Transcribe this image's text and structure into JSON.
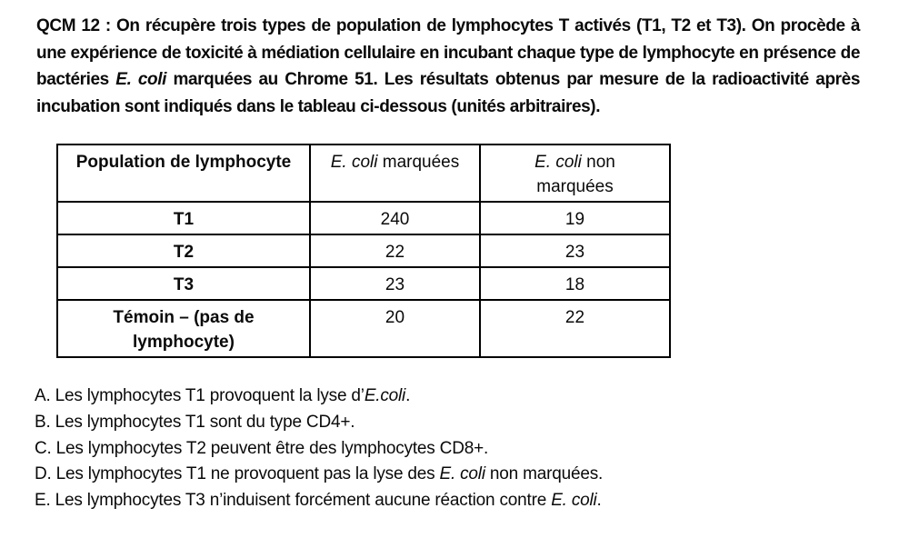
{
  "question": {
    "part1": "QCM 12 : On récupère trois types de population de lymphocytes T activés (T1, T2 et T3). On procède à une expérience de toxicité à médiation cellulaire en incubant chaque type de lymphocyte en présence de bactéries ",
    "italic": "E. coli",
    "part2": " marquées au Chrome 51. Les résultats obtenus par mesure de la radioactivité après incubation sont indiqués dans le tableau ci-dessous (unités arbitraires)."
  },
  "table": {
    "headers": [
      {
        "text": "Population de lymphocyte"
      },
      {
        "italic": "E. coli",
        "rest": " marquées"
      },
      {
        "italic": "E. coli",
        "rest": " non marquées"
      }
    ],
    "rows": [
      {
        "population": "T1",
        "marked": "240",
        "unmarked": "19"
      },
      {
        "population": "T2",
        "marked": "22",
        "unmarked": "23"
      },
      {
        "population": "T3",
        "marked": "23",
        "unmarked": "18"
      },
      {
        "population": "Témoin – (pas de lymphocyte)",
        "marked": "20",
        "unmarked": "22"
      }
    ]
  },
  "options": [
    {
      "pre": "A. Les lymphocytes T1 provoquent la lyse d’",
      "italic": "E.coli",
      "post": "."
    },
    {
      "pre": "B. Les lymphocytes T1 sont du type CD4+.",
      "italic": "",
      "post": ""
    },
    {
      "pre": "C. Les lymphocytes T2 peuvent être des lymphocytes CD8+.",
      "italic": "",
      "post": ""
    },
    {
      "pre": "D. Les lymphocytes T1 ne provoquent pas la lyse des ",
      "italic": "E. coli",
      "post": " non marquées."
    },
    {
      "pre": "E. Les lymphocytes T3 n’induisent forcément aucune réaction contre ",
      "italic": "E. coli",
      "post": "."
    }
  ]
}
